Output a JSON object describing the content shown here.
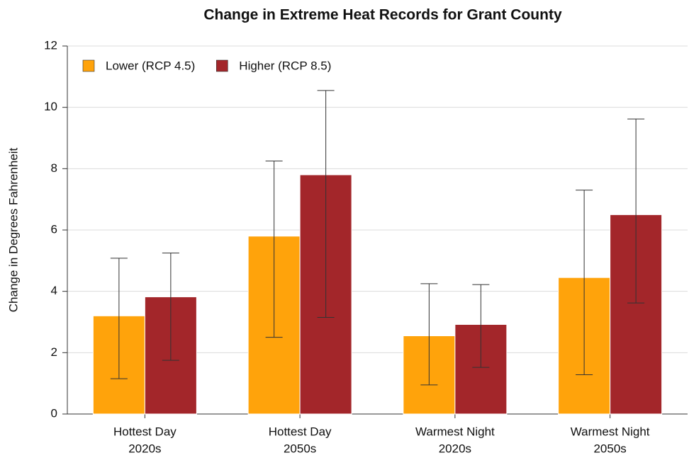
{
  "chart_data": {
    "type": "bar",
    "title": "Change in Extreme Heat Records for Grant County",
    "ylabel": "Change in Degrees Fahrenheit",
    "categories": [
      [
        "Hottest Day",
        "2020s"
      ],
      [
        "Hottest Day",
        "2050s"
      ],
      [
        "Warmest Night",
        "2020s"
      ],
      [
        "Warmest Night",
        "2050s"
      ]
    ],
    "series": [
      {
        "name": "Lower (RCP 4.5)",
        "color": "#ffa30b",
        "values": [
          3.2,
          5.8,
          2.55,
          4.45
        ],
        "lows": [
          1.15,
          2.5,
          0.95,
          1.28
        ],
        "highs": [
          5.08,
          8.25,
          4.25,
          7.3
        ]
      },
      {
        "name": "Higher (RCP 8.5)",
        "color": "#a3262a",
        "values": [
          3.82,
          7.8,
          2.92,
          6.5
        ],
        "lows": [
          1.75,
          3.15,
          1.52,
          3.62
        ],
        "highs": [
          5.25,
          10.55,
          4.22,
          9.62
        ]
      }
    ],
    "ylim": [
      0,
      12
    ],
    "yticks": [
      0,
      2,
      4,
      6,
      8,
      10,
      12
    ],
    "grid": true,
    "legend": "upper left"
  }
}
